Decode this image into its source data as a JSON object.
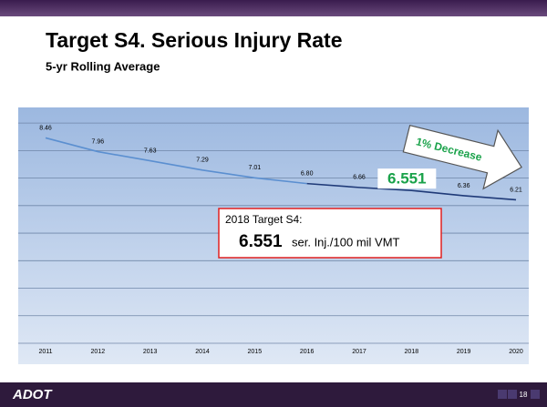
{
  "title": "Target S4. Serious Injury Rate",
  "subtitle": "5-yr Rolling Average",
  "chart_data": {
    "type": "line",
    "categories": [
      "2011",
      "2012",
      "2013",
      "2014",
      "2015",
      "2016",
      "2017",
      "2018",
      "2019",
      "2020"
    ],
    "values": [
      8.46,
      7.96,
      7.63,
      7.29,
      7.01,
      6.8,
      6.66,
      6.551,
      6.36,
      6.21
    ],
    "value_labels": [
      "8.46",
      "7.96",
      "7.63",
      "7.29",
      "7.01",
      "6.80",
      "6.66",
      "6.551",
      "6.36",
      "6.21"
    ],
    "color": "#5b8fd0",
    "projection_color": "#1f3a78",
    "projection_start": "2016",
    "ylim": [
      1,
      9.5
    ],
    "yticks": [
      1,
      2,
      3,
      4,
      5,
      6,
      7,
      8,
      9
    ],
    "grid": true,
    "highlight_index": 7
  },
  "annotations": {
    "arrow": "1% Decrease",
    "callout_title": "2018 Target S4:",
    "callout_value": "6.551",
    "callout_unit": "ser. Inj./100 mil VMT"
  },
  "footer": {
    "logo": "ADOT",
    "page": "18"
  }
}
